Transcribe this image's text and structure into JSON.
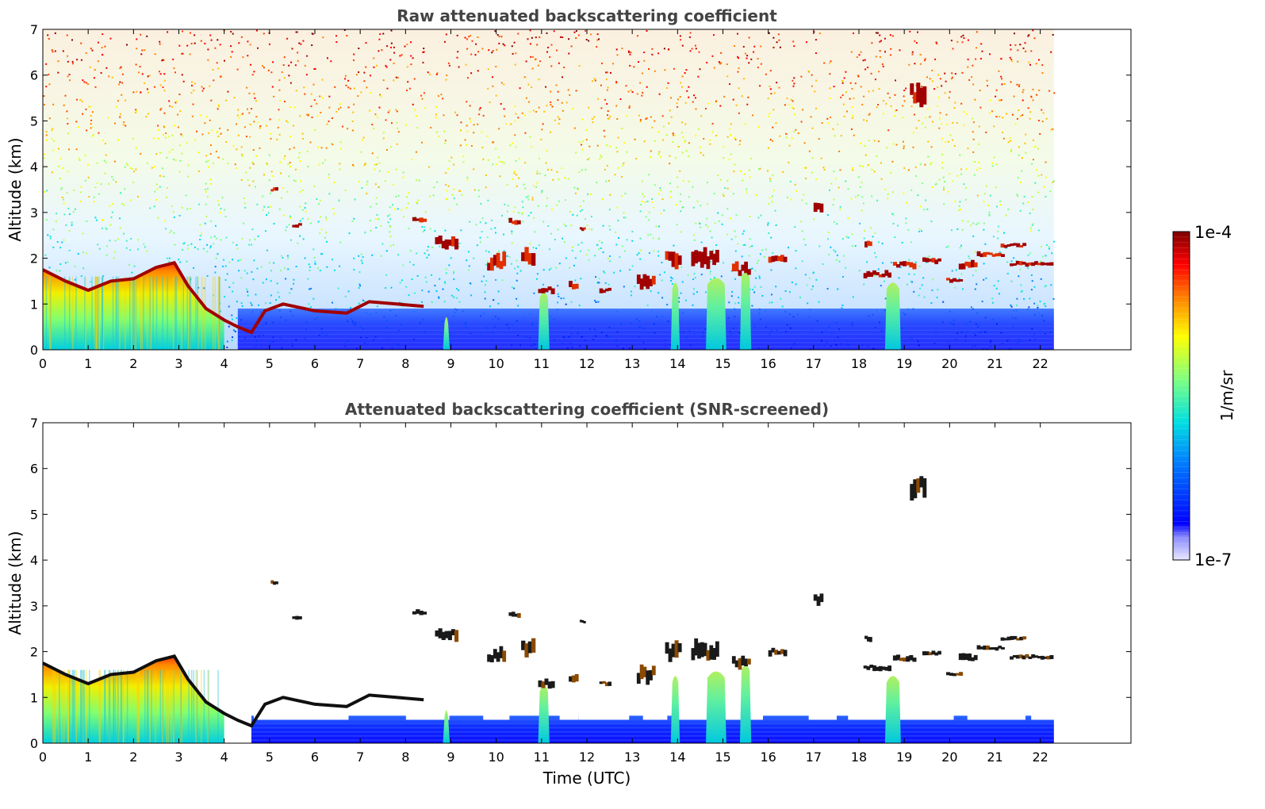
{
  "chart_data": [
    {
      "type": "heatmap",
      "title": "Raw attenuated backscattering coefficient",
      "ylabel": "Altitude (km)",
      "xlabel": "",
      "xlim": [
        0,
        24
      ],
      "ylim": [
        0,
        7
      ],
      "xticks": [
        "0",
        "1",
        "2",
        "3",
        "4",
        "5",
        "6",
        "7",
        "8",
        "9",
        "10",
        "11",
        "12",
        "13",
        "14",
        "15",
        "16",
        "17",
        "18",
        "19",
        "20",
        "21",
        "22"
      ],
      "yticks": [
        "0",
        "1",
        "2",
        "3",
        "4",
        "5",
        "6",
        "7"
      ],
      "data_extent_hours": [
        0,
        22.3
      ],
      "screened": false
    },
    {
      "type": "heatmap",
      "title": "Attenuated backscattering coefficient (SNR-screened)",
      "ylabel": "Altitude (km)",
      "xlabel": "Time (UTC)",
      "xlim": [
        0,
        24
      ],
      "ylim": [
        0,
        7
      ],
      "xticks": [
        "0",
        "1",
        "2",
        "3",
        "4",
        "5",
        "6",
        "7",
        "8",
        "9",
        "10",
        "11",
        "12",
        "13",
        "14",
        "15",
        "16",
        "17",
        "18",
        "19",
        "20",
        "21",
        "22"
      ],
      "yticks": [
        "0",
        "1",
        "2",
        "3",
        "4",
        "5",
        "6",
        "7"
      ],
      "data_extent_hours": [
        0,
        22.3
      ],
      "screened": true
    }
  ],
  "colorbar": {
    "min_label": "1e-7",
    "max_label": "1e-4",
    "unit": "1/m/sr",
    "scale": "log",
    "colormap": "jet"
  },
  "features": {
    "boundary_layer": [
      [
        0,
        1.75
      ],
      [
        0.5,
        1.5
      ],
      [
        1,
        1.3
      ],
      [
        1.5,
        1.5
      ],
      [
        2,
        1.55
      ],
      [
        2.5,
        1.8
      ],
      [
        2.9,
        1.9
      ],
      [
        3.2,
        1.4
      ],
      [
        3.6,
        0.9
      ],
      [
        4,
        0.65
      ],
      [
        4.3,
        0.5
      ],
      [
        4.6,
        0.38
      ],
      [
        4.9,
        0.85
      ],
      [
        5.3,
        1.0
      ],
      [
        6,
        0.85
      ],
      [
        6.7,
        0.8
      ],
      [
        7.2,
        1.05
      ],
      [
        7.8,
        1.0
      ],
      [
        8.4,
        0.95
      ]
    ],
    "clouds": [
      {
        "t": 5.1,
        "alt": 3.5,
        "w": 0.15,
        "h": 0.08
      },
      {
        "t": 5.6,
        "alt": 2.72,
        "w": 0.2,
        "h": 0.08
      },
      {
        "t": 8.3,
        "alt": 2.85,
        "w": 0.3,
        "h": 0.1
      },
      {
        "t": 8.9,
        "alt": 2.35,
        "w": 0.5,
        "h": 0.25
      },
      {
        "t": 10.4,
        "alt": 2.8,
        "w": 0.25,
        "h": 0.1
      },
      {
        "t": 10.0,
        "alt": 1.9,
        "w": 0.4,
        "h": 0.3
      },
      {
        "t": 10.7,
        "alt": 2.05,
        "w": 0.3,
        "h": 0.3
      },
      {
        "t": 11.1,
        "alt": 1.3,
        "w": 0.35,
        "h": 0.15
      },
      {
        "t": 11.7,
        "alt": 1.4,
        "w": 0.2,
        "h": 0.15
      },
      {
        "t": 11.9,
        "alt": 2.65,
        "w": 0.12,
        "h": 0.08
      },
      {
        "t": 12.4,
        "alt": 1.3,
        "w": 0.25,
        "h": 0.1
      },
      {
        "t": 13.3,
        "alt": 1.5,
        "w": 0.4,
        "h": 0.3
      },
      {
        "t": 13.9,
        "alt": 2.0,
        "w": 0.35,
        "h": 0.35
      },
      {
        "t": 14.6,
        "alt": 2.0,
        "w": 0.6,
        "h": 0.35
      },
      {
        "t": 15.4,
        "alt": 1.75,
        "w": 0.4,
        "h": 0.25
      },
      {
        "t": 16.2,
        "alt": 2.0,
        "w": 0.4,
        "h": 0.15
      },
      {
        "t": 17.1,
        "alt": 3.15,
        "w": 0.2,
        "h": 0.2
      },
      {
        "t": 18.4,
        "alt": 1.65,
        "w": 0.6,
        "h": 0.12
      },
      {
        "t": 19.0,
        "alt": 1.85,
        "w": 0.5,
        "h": 0.12
      },
      {
        "t": 19.6,
        "alt": 1.95,
        "w": 0.4,
        "h": 0.1
      },
      {
        "t": 20.1,
        "alt": 1.52,
        "w": 0.35,
        "h": 0.08
      },
      {
        "t": 20.4,
        "alt": 1.85,
        "w": 0.4,
        "h": 0.15
      },
      {
        "t": 20.9,
        "alt": 2.08,
        "w": 0.6,
        "h": 0.1
      },
      {
        "t": 21.4,
        "alt": 2.28,
        "w": 0.55,
        "h": 0.08
      },
      {
        "t": 21.8,
        "alt": 1.88,
        "w": 0.95,
        "h": 0.08
      },
      {
        "t": 18.2,
        "alt": 2.3,
        "w": 0.15,
        "h": 0.12
      },
      {
        "t": 19.3,
        "alt": 5.6,
        "w": 0.35,
        "h": 0.4
      }
    ],
    "precip_columns": [
      {
        "t": 8.9,
        "top": 0.75,
        "w": 0.15
      },
      {
        "t": 11.05,
        "top": 1.3,
        "w": 0.25
      },
      {
        "t": 13.95,
        "top": 1.5,
        "w": 0.2
      },
      {
        "t": 14.85,
        "top": 1.6,
        "w": 0.45
      },
      {
        "t": 15.5,
        "top": 1.75,
        "w": 0.25
      },
      {
        "t": 18.75,
        "top": 1.5,
        "w": 0.35
      }
    ]
  }
}
